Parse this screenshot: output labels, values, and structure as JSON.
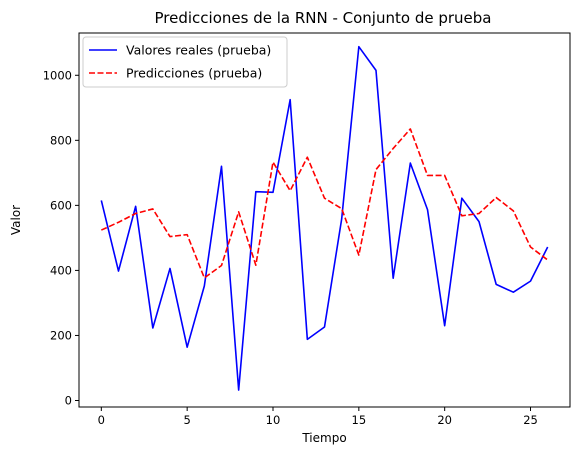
{
  "chart_data": {
    "type": "line",
    "title": "Predicciones de la RNN - Conjunto de prueba",
    "xlabel": "Tiempo",
    "ylabel": "Valor",
    "xlim": [
      -1.3,
      27.3
    ],
    "ylim": [
      -20,
      1130
    ],
    "xticks": [
      0,
      5,
      10,
      15,
      20,
      25
    ],
    "yticks": [
      0,
      200,
      400,
      600,
      800,
      1000
    ],
    "legend_position": "upper-left",
    "grid": false,
    "x": [
      0,
      1,
      2,
      3,
      4,
      5,
      6,
      7,
      8,
      9,
      10,
      11,
      12,
      13,
      14,
      15,
      16,
      17,
      18,
      19,
      20,
      21,
      22,
      23,
      24,
      25,
      26
    ],
    "series": [
      {
        "name": "Valores reales (prueba)",
        "color": "#0000ff",
        "style": "solid",
        "values": [
          615,
          398,
          597,
          223,
          406,
          164,
          352,
          720,
          32,
          642,
          640,
          925,
          188,
          226,
          558,
          1088,
          1015,
          376,
          730,
          587,
          230,
          622,
          550,
          357,
          333,
          367,
          472
        ]
      },
      {
        "name": "Predicciones (prueba)",
        "color": "#ff0000",
        "style": "dashed",
        "values": [
          524,
          548,
          575,
          589,
          504,
          510,
          377,
          415,
          580,
          416,
          733,
          645,
          748,
          622,
          590,
          447,
          710,
          775,
          835,
          692,
          692,
          568,
          575,
          624,
          583,
          472,
          432
        ]
      }
    ]
  }
}
